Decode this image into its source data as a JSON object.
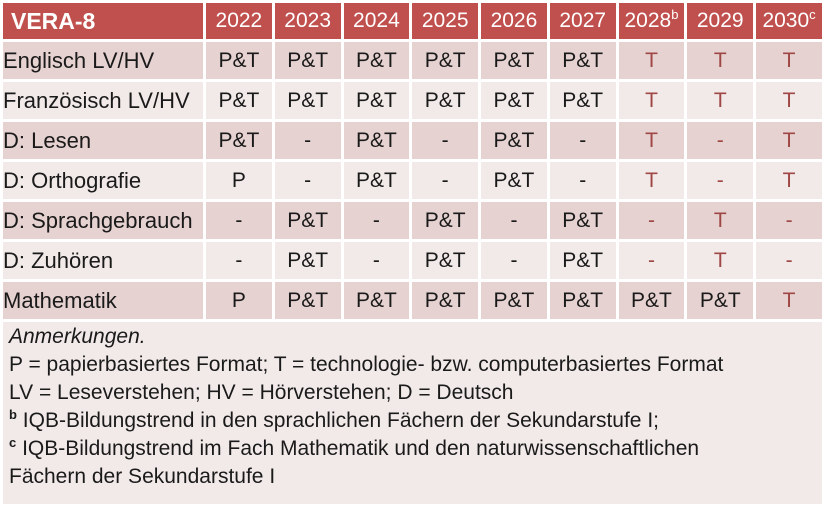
{
  "table": {
    "header": {
      "label": "VERA-8",
      "years": [
        {
          "text": "2022",
          "sup": ""
        },
        {
          "text": "2023",
          "sup": ""
        },
        {
          "text": "2024",
          "sup": ""
        },
        {
          "text": "2025",
          "sup": ""
        },
        {
          "text": "2026",
          "sup": ""
        },
        {
          "text": "2027",
          "sup": ""
        },
        {
          "text": "2028",
          "sup": "b"
        },
        {
          "text": "2029",
          "sup": ""
        },
        {
          "text": "2030",
          "sup": "c"
        }
      ]
    },
    "rows": [
      {
        "label": "Englisch LV/HV",
        "cells": [
          {
            "text": "P&T",
            "red": false
          },
          {
            "text": "P&T",
            "red": false
          },
          {
            "text": "P&T",
            "red": false
          },
          {
            "text": "P&T",
            "red": false
          },
          {
            "text": "P&T",
            "red": false
          },
          {
            "text": "P&T",
            "red": false
          },
          {
            "text": "T",
            "red": true
          },
          {
            "text": "T",
            "red": true
          },
          {
            "text": "T",
            "red": true
          }
        ]
      },
      {
        "label": "Französisch LV/HV",
        "cells": [
          {
            "text": "P&T",
            "red": false
          },
          {
            "text": "P&T",
            "red": false
          },
          {
            "text": "P&T",
            "red": false
          },
          {
            "text": "P&T",
            "red": false
          },
          {
            "text": "P&T",
            "red": false
          },
          {
            "text": "P&T",
            "red": false
          },
          {
            "text": "T",
            "red": true
          },
          {
            "text": "T",
            "red": true
          },
          {
            "text": "T",
            "red": true
          }
        ]
      },
      {
        "label": "D: Lesen",
        "cells": [
          {
            "text": "P&T",
            "red": false
          },
          {
            "text": "-",
            "red": false
          },
          {
            "text": "P&T",
            "red": false
          },
          {
            "text": "-",
            "red": false
          },
          {
            "text": "P&T",
            "red": false
          },
          {
            "text": "-",
            "red": false
          },
          {
            "text": "T",
            "red": true
          },
          {
            "text": "-",
            "red": true
          },
          {
            "text": "T",
            "red": true
          }
        ]
      },
      {
        "label": "D: Orthografie",
        "cells": [
          {
            "text": "P",
            "red": false
          },
          {
            "text": "-",
            "red": false
          },
          {
            "text": "P&T",
            "red": false
          },
          {
            "text": "-",
            "red": false
          },
          {
            "text": "P&T",
            "red": false
          },
          {
            "text": "-",
            "red": false
          },
          {
            "text": "T",
            "red": true
          },
          {
            "text": "-",
            "red": true
          },
          {
            "text": "T",
            "red": true
          }
        ]
      },
      {
        "label": "D: Sprachgebrauch",
        "cells": [
          {
            "text": "-",
            "red": false
          },
          {
            "text": "P&T",
            "red": false
          },
          {
            "text": "-",
            "red": false
          },
          {
            "text": "P&T",
            "red": false
          },
          {
            "text": "-",
            "red": false
          },
          {
            "text": "P&T",
            "red": false
          },
          {
            "text": "-",
            "red": true
          },
          {
            "text": "T",
            "red": true
          },
          {
            "text": "-",
            "red": true
          }
        ]
      },
      {
        "label": "D: Zuhören",
        "cells": [
          {
            "text": "-",
            "red": false
          },
          {
            "text": "P&T",
            "red": false
          },
          {
            "text": "-",
            "red": false
          },
          {
            "text": "P&T",
            "red": false
          },
          {
            "text": "-",
            "red": false
          },
          {
            "text": "P&T",
            "red": false
          },
          {
            "text": "-",
            "red": true
          },
          {
            "text": "T",
            "red": true
          },
          {
            "text": "-",
            "red": true
          }
        ]
      },
      {
        "label": "Mathematik",
        "cells": [
          {
            "text": "P",
            "red": false
          },
          {
            "text": "P&T",
            "red": false
          },
          {
            "text": "P&T",
            "red": false
          },
          {
            "text": "P&T",
            "red": false
          },
          {
            "text": "P&T",
            "red": false
          },
          {
            "text": "P&T",
            "red": false
          },
          {
            "text": "P&T",
            "red": false
          },
          {
            "text": "P&T",
            "red": false
          },
          {
            "text": "T",
            "red": true
          }
        ]
      }
    ]
  },
  "notes": {
    "lines": [
      {
        "sup": "",
        "text": "Anmerkungen.",
        "italic": true
      },
      {
        "sup": "",
        "text": "P = papierbasiertes Format; T = technologie- bzw. computerbasiertes Format",
        "italic": false
      },
      {
        "sup": "",
        "text": "LV = Leseverstehen; HV = Hörverstehen; D = Deutsch",
        "italic": false
      },
      {
        "sup": "b",
        "text": "IQB-Bildungstrend in den sprachlichen Fächern der Sekundarstufe I;",
        "italic": false
      },
      {
        "sup": "c",
        "text": "IQB-Bildungstrend im Fach Mathematik und den naturwissenschaftlichen",
        "italic": false
      },
      {
        "sup": "",
        "text": "Fächern der Sekundarstufe I",
        "italic": false
      }
    ]
  },
  "colors": {
    "header_bg": "#C0504D",
    "band_dark": "#E6D2D1",
    "band_light": "#F2EAE9",
    "text_dark": "#1A1A1A",
    "text_red": "#9E4744",
    "page_bg": "#FFFFFF",
    "header_text": "#FFFFFF"
  }
}
